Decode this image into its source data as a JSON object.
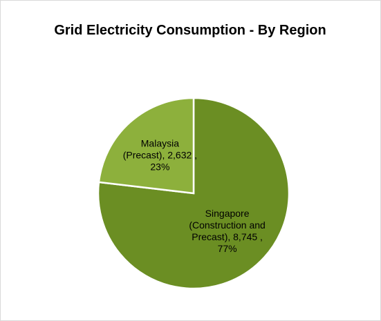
{
  "chart_data": {
    "type": "pie",
    "title": "Grid Electricity Consumption - By Region",
    "values": [
      8745,
      2632
    ],
    "value_labels": [
      "Singapore (Construction and Precast), 8,745 , 77%",
      "Malaysia (Precast), 2,632 , 23%"
    ],
    "colors": [
      "#6b8e23",
      "#8db03c"
    ]
  }
}
